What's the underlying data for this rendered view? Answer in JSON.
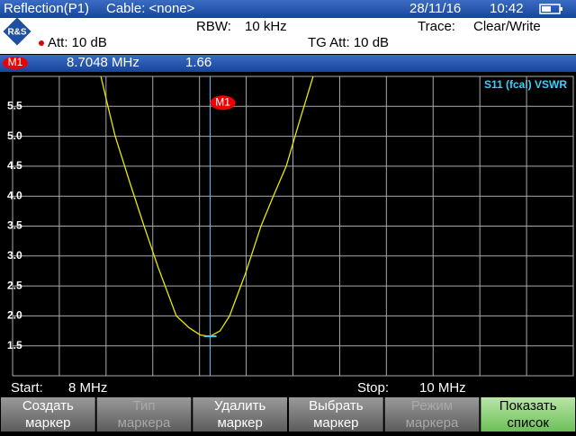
{
  "header": {
    "title": "Reflection(P1)",
    "cable": "Cable: <none>",
    "date": "28/11/16",
    "time": "10:42"
  },
  "settings": {
    "rbw_label": "RBW:",
    "rbw": "10 kHz",
    "trace_label": "Trace:",
    "trace": "Clear/Write",
    "att": "Att: 10 dB",
    "tg_att": "TG Att: 10 dB"
  },
  "chart_data": {
    "type": "line",
    "title": "S11 (fcal) VSWR",
    "marker": {
      "name": "M1",
      "x": 8.7048,
      "x_label": "8.7048 MHz",
      "y": 1.66
    },
    "x": [
      8.315,
      8.34,
      8.366,
      8.42,
      8.469,
      8.52,
      8.584,
      8.63,
      8.67,
      8.7048,
      8.74,
      8.774,
      8.83,
      8.886,
      8.93,
      8.976,
      9.02,
      9.072
    ],
    "series": [
      {
        "name": "VSWR",
        "color": "#e8e800",
        "values": [
          6.0,
          5.5,
          5.0,
          4.2,
          3.5,
          2.8,
          2.0,
          1.8,
          1.68,
          1.66,
          1.75,
          2.0,
          2.7,
          3.5,
          4.0,
          4.5,
          5.2,
          6.0
        ]
      }
    ],
    "xlim": [
      8,
      10
    ],
    "ylim": [
      1,
      6
    ],
    "yticks": [
      1.5,
      {
        "value": 2,
        "label": "2.0"
      },
      2.5,
      {
        "value": 3,
        "label": "3.0"
      },
      3.5,
      {
        "value": 4,
        "label": "4.0"
      },
      4.5,
      {
        "value": 5,
        "label": "5.0"
      },
      5.5
    ],
    "grid": true,
    "start_label": "Start:",
    "start": "8 MHz",
    "stop_label": "Stop:",
    "stop": "10 MHz"
  },
  "softkeys": [
    {
      "label": "Создать маркер",
      "enabled": true
    },
    {
      "label": "Тип маркера",
      "enabled": false
    },
    {
      "label": "Удалить маркер",
      "enabled": true
    },
    {
      "label": "Выбрать маркер",
      "enabled": true
    },
    {
      "label": "Режим маркера",
      "enabled": false
    },
    {
      "label": "Показать список",
      "enabled": true,
      "active": true
    }
  ]
}
